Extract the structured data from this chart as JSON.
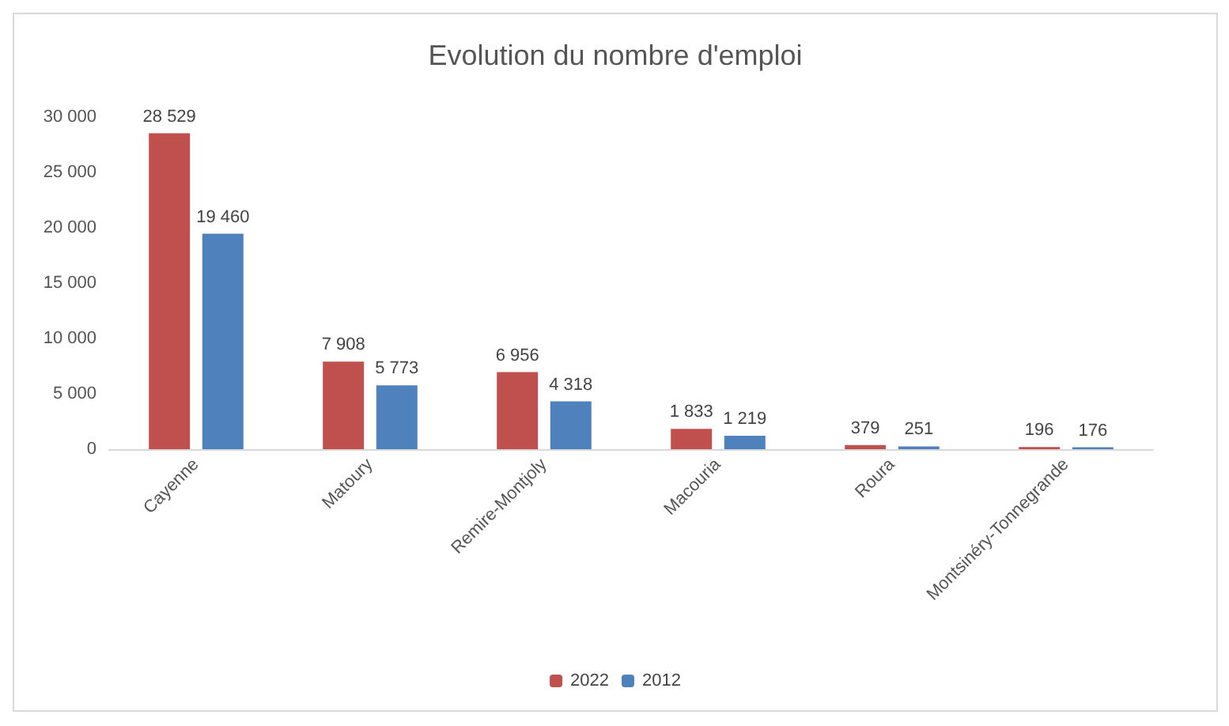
{
  "chart_data": {
    "type": "bar",
    "title": "Evolution du nombre d'emploi",
    "categories": [
      "Cayenne",
      "Matoury",
      "Remire-Montjoly",
      "Macouria",
      "Roura",
      "Montsinéry-Tonnegrande"
    ],
    "series": [
      {
        "name": "2022",
        "color": "#c0504d",
        "values": [
          28529,
          7908,
          6956,
          1833,
          379,
          196
        ],
        "value_labels": [
          "28 529",
          "7 908",
          "6 956",
          "1 833",
          "379",
          "196"
        ]
      },
      {
        "name": "2012",
        "color": "#4f81bd",
        "values": [
          19460,
          5773,
          4318,
          1219,
          251,
          176
        ],
        "value_labels": [
          "19 460",
          "5 773",
          "4 318",
          "1 219",
          "251",
          "176"
        ]
      }
    ],
    "ylim": [
      0,
      30000
    ],
    "yticks": [
      {
        "value": 0,
        "label": "0"
      },
      {
        "value": 5000,
        "label": "5 000"
      },
      {
        "value": 10000,
        "label": "10 000"
      },
      {
        "value": 15000,
        "label": "15 000"
      },
      {
        "value": 20000,
        "label": "20 000"
      },
      {
        "value": 25000,
        "label": "25 000"
      },
      {
        "value": 30000,
        "label": "30 000"
      }
    ],
    "grid": false,
    "legend": "bottom"
  }
}
